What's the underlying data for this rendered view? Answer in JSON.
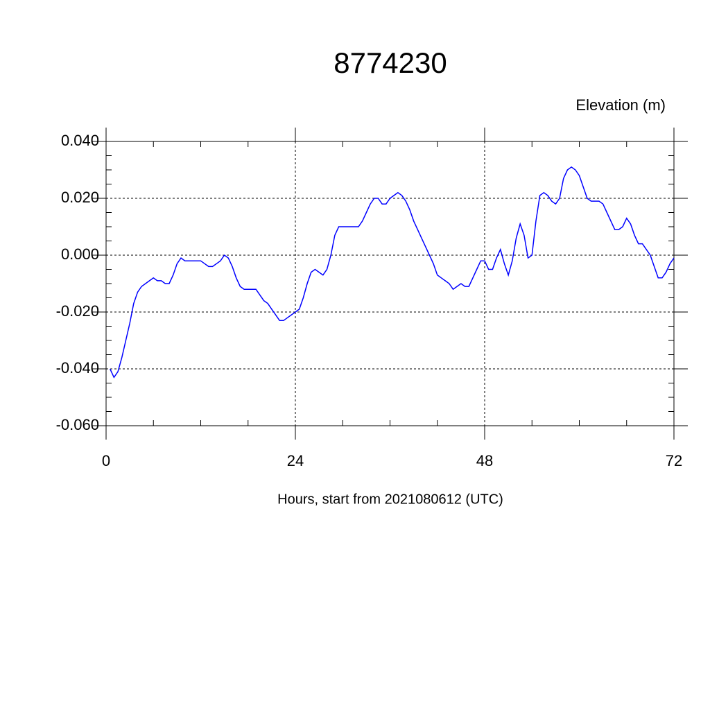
{
  "chart_data": {
    "type": "line",
    "title": "8774230",
    "y_label": "Elevation (m)",
    "x_label": "Hours, start from 2021080612 (UTC)",
    "x": [
      0.5,
      1,
      1.5,
      2,
      2.5,
      3,
      3.5,
      4,
      4.5,
      5,
      5.5,
      6,
      6.5,
      7,
      7.5,
      8,
      8.5,
      9,
      9.5,
      10,
      10.5,
      11,
      11.5,
      12,
      12.5,
      13,
      13.5,
      14,
      14.5,
      15,
      15.5,
      16,
      16.5,
      17,
      17.5,
      18,
      18.5,
      19,
      19.5,
      20,
      20.5,
      21,
      21.5,
      22,
      22.5,
      23,
      23.5,
      24,
      24.5,
      25,
      25.5,
      26,
      26.5,
      27,
      27.5,
      28,
      28.5,
      29,
      29.5,
      30,
      30.5,
      31,
      31.5,
      32,
      32.5,
      33,
      33.5,
      34,
      34.5,
      35,
      35.5,
      36,
      36.5,
      37,
      37.5,
      38,
      38.5,
      39,
      39.5,
      40,
      40.5,
      41,
      41.5,
      42,
      42.5,
      43,
      43.5,
      44,
      44.5,
      45,
      45.5,
      46,
      46.5,
      47,
      47.5,
      48,
      48.5,
      49,
      49.5,
      50,
      50.5,
      51,
      51.5,
      52,
      52.5,
      53,
      53.5,
      54,
      54.5,
      55,
      55.5,
      56,
      56.5,
      57,
      57.5,
      58,
      58.5,
      59,
      59.5,
      60,
      60.5,
      61,
      61.5,
      62,
      62.5,
      63,
      63.5,
      64,
      64.5,
      65,
      65.5,
      66,
      66.5,
      67,
      67.5,
      68,
      68.5,
      69,
      69.5,
      70,
      70.5,
      71,
      71.5,
      72
    ],
    "series": [
      {
        "color": "#0000ff",
        "values": [
          -0.04,
          -0.043,
          -0.041,
          -0.036,
          -0.03,
          -0.024,
          -0.017,
          -0.013,
          -0.011,
          -0.01,
          -0.009,
          -0.008,
          -0.009,
          -0.009,
          -0.01,
          -0.01,
          -0.007,
          -0.003,
          -0.001,
          -0.002,
          -0.002,
          -0.002,
          -0.002,
          -0.002,
          -0.003,
          -0.004,
          -0.004,
          -0.003,
          -0.002,
          0.0,
          -0.001,
          -0.004,
          -0.008,
          -0.011,
          -0.012,
          -0.012,
          -0.012,
          -0.012,
          -0.014,
          -0.016,
          -0.017,
          -0.019,
          -0.021,
          -0.023,
          -0.023,
          -0.022,
          -0.021,
          -0.02,
          -0.019,
          -0.015,
          -0.01,
          -0.006,
          -0.005,
          -0.006,
          -0.007,
          -0.005,
          0.0,
          0.007,
          0.01,
          0.01,
          0.01,
          0.01,
          0.01,
          0.01,
          0.012,
          0.015,
          0.018,
          0.02,
          0.02,
          0.018,
          0.018,
          0.02,
          0.021,
          0.022,
          0.021,
          0.019,
          0.016,
          0.012,
          0.009,
          0.006,
          0.003,
          0.0,
          -0.003,
          -0.007,
          -0.008,
          -0.009,
          -0.01,
          -0.012,
          -0.011,
          -0.01,
          -0.011,
          -0.011,
          -0.008,
          -0.005,
          -0.002,
          -0.002,
          -0.005,
          -0.005,
          -0.001,
          0.002,
          -0.003,
          -0.007,
          -0.002,
          0.006,
          0.011,
          0.007,
          -0.001,
          0.0,
          0.012,
          0.021,
          0.022,
          0.021,
          0.019,
          0.018,
          0.02,
          0.027,
          0.03,
          0.031,
          0.03,
          0.028,
          0.024,
          0.02,
          0.019,
          0.019,
          0.019,
          0.018,
          0.015,
          0.012,
          0.009,
          0.009,
          0.01,
          0.013,
          0.011,
          0.007,
          0.004,
          0.004,
          0.002,
          0.0,
          -0.004,
          -0.008,
          -0.008,
          -0.006,
          -0.003,
          -0.001
        ]
      }
    ],
    "xlim": [
      0,
      72
    ],
    "xticks": [
      0,
      24,
      48,
      72
    ],
    "ylim": [
      -0.06,
      0.04
    ],
    "yticks": [
      {
        "value": -0.06,
        "label": "-0.060"
      },
      {
        "value": -0.04,
        "label": "-0.040"
      },
      {
        "value": -0.02,
        "label": "-0.020"
      },
      {
        "value": 0,
        "label": "0.000"
      },
      {
        "value": 0.02,
        "label": "0.020"
      },
      {
        "value": 0.04,
        "label": "0.040"
      }
    ],
    "grid": true
  }
}
